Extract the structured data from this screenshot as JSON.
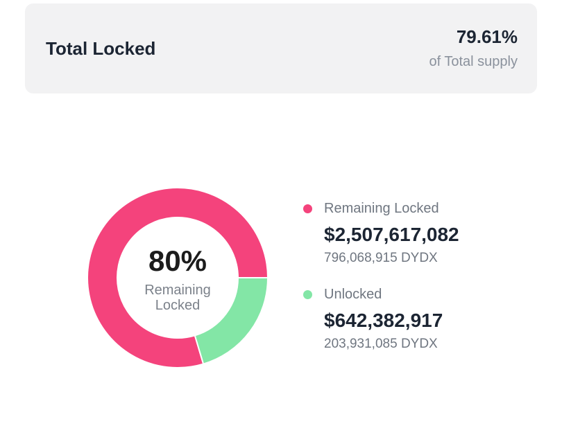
{
  "summary": {
    "title": "Total Locked",
    "percent": "79.61%",
    "subtitle": "of Total supply"
  },
  "donut": {
    "center_value": "80%",
    "center_label": "Remaining Locked"
  },
  "colors": {
    "locked": "#f4437c",
    "unlocked": "#83e6a6"
  },
  "legend": {
    "items": [
      {
        "name": "Remaining Locked",
        "value": "$2,507,617,082",
        "amount": "796,068,915 DYDX"
      },
      {
        "name": "Unlocked",
        "value": "$642,382,917",
        "amount": "203,931,085 DYDX"
      }
    ]
  },
  "chart_data": {
    "type": "pie",
    "categories": [
      "Remaining Locked",
      "Unlocked"
    ],
    "values": [
      796068915,
      203931085
    ],
    "title": "",
    "donut": true
  }
}
